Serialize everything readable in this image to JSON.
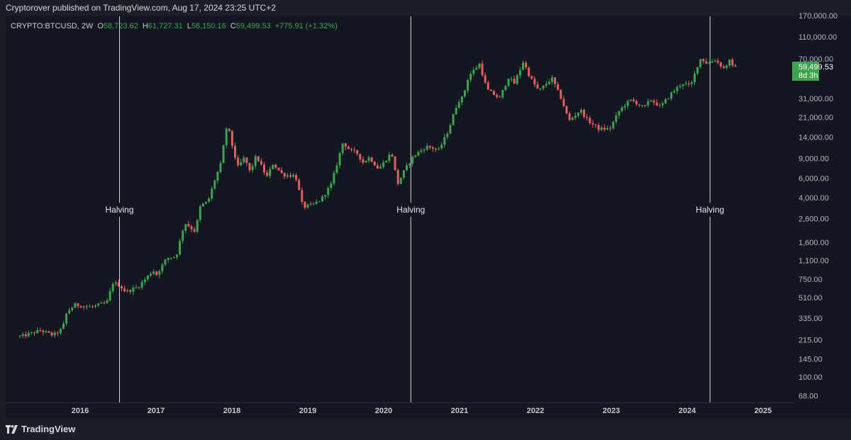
{
  "header": {
    "published": "Cryptorover published on TradingView.com, Aug 17, 2024 23:25 UTC+2"
  },
  "legend": {
    "symbol": "CRYPTO:BTCUSD, 2W",
    "open_label": "O",
    "open": "58,723.62",
    "high_label": "H",
    "high": "61,727.31",
    "low_label": "L",
    "low": "56,150.16",
    "close_label": "C",
    "close": "59,499.53",
    "change": "+775.91 (+1.32%)"
  },
  "price_badge": {
    "price": "59,499.53",
    "countdown": "8d 3h"
  },
  "footer": {
    "brand": "TradingView"
  },
  "colors": {
    "up": "#3fa34d",
    "down": "#e35f5f",
    "background": "#141722",
    "badge": "#3fa34d"
  },
  "chart_data": {
    "type": "candlestick",
    "symbol": "CRYPTO:BTCUSD",
    "interval": "2W",
    "scale": "log",
    "x_ticks": [
      "2016",
      "2017",
      "2018",
      "2019",
      "2020",
      "2021",
      "2022",
      "2023",
      "2024",
      "2025"
    ],
    "y_ticks": [
      68,
      100,
      145,
      215,
      335,
      510,
      750,
      1100,
      1600,
      2600,
      4000,
      6000,
      9000,
      14000,
      21000,
      31000,
      70000,
      110000,
      170000
    ],
    "y_tick_labels": [
      "68.00",
      "100.00",
      "145.00",
      "215.00",
      "335.00",
      "510.00",
      "750.00",
      "1,100.00",
      "1,600.00",
      "2,600.00",
      "4,000.00",
      "6,000.00",
      "9,000.00",
      "14,000.00",
      "21,000.00",
      "31,000.00",
      "70,000.00",
      "110,000.00",
      "170,000.00"
    ],
    "vertical_markers": [
      {
        "label": "Halving",
        "date": "2016-07-09"
      },
      {
        "label": "Halving",
        "date": "2020-05-11"
      },
      {
        "label": "Halving",
        "date": "2024-04-20"
      }
    ],
    "last_price": 59499.53,
    "anchors": [
      [
        "2015-04-01",
        230
      ],
      [
        "2015-07-01",
        260
      ],
      [
        "2015-09-01",
        235
      ],
      [
        "2015-10-15",
        270
      ],
      [
        "2015-11-05",
        380
      ],
      [
        "2015-12-15",
        440
      ],
      [
        "2016-03-01",
        420
      ],
      [
        "2016-05-15",
        460
      ],
      [
        "2016-06-15",
        700
      ],
      [
        "2016-07-15",
        660
      ],
      [
        "2016-08-15",
        575
      ],
      [
        "2016-10-15",
        640
      ],
      [
        "2016-12-25",
        900
      ],
      [
        "2017-01-10",
        820
      ],
      [
        "2017-03-01",
        1150
      ],
      [
        "2017-04-15",
        1200
      ],
      [
        "2017-05-25",
        2400
      ],
      [
        "2017-07-15",
        2000
      ],
      [
        "2017-08-10",
        3400
      ],
      [
        "2017-09-15",
        3700
      ],
      [
        "2017-10-15",
        5600
      ],
      [
        "2017-11-15",
        8000
      ],
      [
        "2017-12-17",
        19000
      ],
      [
        "2018-01-01",
        13500
      ],
      [
        "2018-02-05",
        7500
      ],
      [
        "2018-03-10",
        9200
      ],
      [
        "2018-04-05",
        6800
      ],
      [
        "2018-05-05",
        9500
      ],
      [
        "2018-06-25",
        6100
      ],
      [
        "2018-07-25",
        8100
      ],
      [
        "2018-09-10",
        6400
      ],
      [
        "2018-11-10",
        6300
      ],
      [
        "2018-12-15",
        3300
      ],
      [
        "2019-02-01",
        3450
      ],
      [
        "2019-03-15",
        3900
      ],
      [
        "2019-05-01",
        5300
      ],
      [
        "2019-06-01",
        8500
      ],
      [
        "2019-06-26",
        12500
      ],
      [
        "2019-08-01",
        10500
      ],
      [
        "2019-09-01",
        10100
      ],
      [
        "2019-10-01",
        8300
      ],
      [
        "2019-11-01",
        9200
      ],
      [
        "2019-12-15",
        7200
      ],
      [
        "2020-02-15",
        10200
      ],
      [
        "2020-03-15",
        5300
      ],
      [
        "2020-04-20",
        7200
      ],
      [
        "2020-06-01",
        9500
      ],
      [
        "2020-08-01",
        11500
      ],
      [
        "2020-10-01",
        10700
      ],
      [
        "2020-11-15",
        16000
      ],
      [
        "2020-12-30",
        28900
      ],
      [
        "2021-01-25",
        32000
      ],
      [
        "2021-02-20",
        49000
      ],
      [
        "2021-04-14",
        63000
      ],
      [
        "2021-05-20",
        37000
      ],
      [
        "2021-07-20",
        31000
      ],
      [
        "2021-09-01",
        48000
      ],
      [
        "2021-09-28",
        42000
      ],
      [
        "2021-11-10",
        66000
      ],
      [
        "2021-12-15",
        47000
      ],
      [
        "2022-01-25",
        36000
      ],
      [
        "2022-03-28",
        47000
      ],
      [
        "2022-05-15",
        30000
      ],
      [
        "2022-06-18",
        19500
      ],
      [
        "2022-08-13",
        24400
      ],
      [
        "2022-09-15",
        19800
      ],
      [
        "2022-11-10",
        16500
      ],
      [
        "2023-01-01",
        16600
      ],
      [
        "2023-02-15",
        24000
      ],
      [
        "2023-03-20",
        28000
      ],
      [
        "2023-04-14",
        30000
      ],
      [
        "2023-06-15",
        25500
      ],
      [
        "2023-07-15",
        30300
      ],
      [
        "2023-09-01",
        26000
      ],
      [
        "2023-10-25",
        34500
      ],
      [
        "2023-12-15",
        42500
      ],
      [
        "2024-01-25",
        40000
      ],
      [
        "2024-02-28",
        62000
      ],
      [
        "2024-03-14",
        71000
      ],
      [
        "2024-04-15",
        63000
      ],
      [
        "2024-05-20",
        69000
      ],
      [
        "2024-07-05",
        57000
      ],
      [
        "2024-07-29",
        68000
      ],
      [
        "2024-08-10",
        58700
      ],
      [
        "2024-08-17",
        59500
      ]
    ]
  }
}
